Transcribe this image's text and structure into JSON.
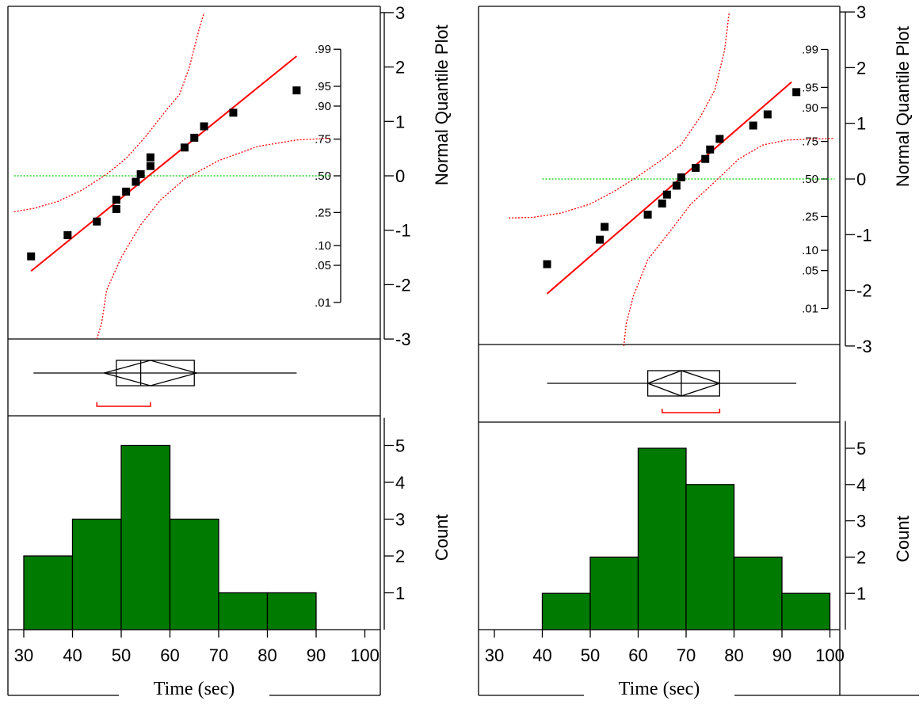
{
  "chart_data": [
    {
      "type": "scatter",
      "title": "",
      "xlabel": "Time (sec)",
      "x_ticks": [
        30,
        40,
        50,
        60,
        70,
        80,
        90,
        100
      ],
      "x_range": [
        28,
        103
      ],
      "quantile_plot": {
        "ylabel": "Normal Quantile Plot",
        "y_range": [
          -3,
          3
        ],
        "y_ticks": [
          -3,
          -2,
          -1,
          0,
          1,
          2,
          3
        ],
        "prob_ticks": [
          {
            "label": ".99",
            "q": 2.326
          },
          {
            "label": ".95",
            "q": 1.645
          },
          {
            "label": ".90",
            "q": 1.2816
          },
          {
            "label": ".75",
            "q": 0.6745
          },
          {
            "label": ".50",
            "q": 0
          },
          {
            "label": ".25",
            "q": -0.6745
          },
          {
            "label": ".10",
            "q": -1.2816
          },
          {
            "label": ".05",
            "q": -1.645
          },
          {
            "label": ".01",
            "q": -2.326
          }
        ],
        "points": [
          {
            "x": 31.5,
            "q": -1.48
          },
          {
            "x": 39,
            "q": -1.09
          },
          {
            "x": 45,
            "q": -0.84
          },
          {
            "x": 49,
            "q": -0.61
          },
          {
            "x": 49,
            "q": -0.44
          },
          {
            "x": 51,
            "q": -0.29
          },
          {
            "x": 53,
            "q": -0.11
          },
          {
            "x": 54,
            "q": 0.03
          },
          {
            "x": 56,
            "q": 0.18
          },
          {
            "x": 56,
            "q": 0.34
          },
          {
            "x": 63,
            "q": 0.52
          },
          {
            "x": 65,
            "q": 0.7
          },
          {
            "x": 67,
            "q": 0.91
          },
          {
            "x": 73,
            "q": 1.16
          },
          {
            "x": 86,
            "q": 1.57
          }
        ],
        "fit_line": [
          {
            "x": 31.5,
            "q": -1.75
          },
          {
            "x": 86,
            "q": 2.2
          }
        ],
        "confidence_upper": [
          {
            "x": 28,
            "q": -0.66
          },
          {
            "x": 32,
            "q": -0.6
          },
          {
            "x": 37,
            "q": -0.47
          },
          {
            "x": 42,
            "q": -0.26
          },
          {
            "x": 47,
            "q": 0.03
          },
          {
            "x": 51,
            "q": 0.32
          },
          {
            "x": 55,
            "q": 0.72
          },
          {
            "x": 59,
            "q": 1.18
          },
          {
            "x": 62,
            "q": 1.5
          },
          {
            "x": 64,
            "q": 2.0
          },
          {
            "x": 66,
            "q": 2.7
          },
          {
            "x": 67,
            "q": 3.0
          }
        ],
        "confidence_lower": [
          {
            "x": 45,
            "q": -3.0
          },
          {
            "x": 46,
            "q": -2.7
          },
          {
            "x": 47,
            "q": -2.1
          },
          {
            "x": 50,
            "q": -1.5
          },
          {
            "x": 54,
            "q": -0.9
          },
          {
            "x": 58,
            "q": -0.45
          },
          {
            "x": 63,
            "q": -0.06
          },
          {
            "x": 70,
            "q": 0.28
          },
          {
            "x": 78,
            "q": 0.54
          },
          {
            "x": 86,
            "q": 0.66
          },
          {
            "x": 93,
            "q": 0.69
          }
        ],
        "median_line": {
          "q": 0,
          "x_from": 28,
          "x_to": 93
        }
      },
      "box_plot": {
        "min": 32,
        "q1": 49,
        "median": 54,
        "q3": 65,
        "max": 86,
        "mean": 56,
        "mean_ci": [
          46.5,
          65.5
        ],
        "shortest_half": [
          45,
          56
        ]
      },
      "histogram": {
        "ylabel": "Count",
        "y_ticks": [
          1,
          2,
          3,
          4,
          5
        ],
        "y_max": 5.75,
        "bins": [
          {
            "from": 30,
            "to": 40,
            "count": 2
          },
          {
            "from": 40,
            "to": 50,
            "count": 3
          },
          {
            "from": 50,
            "to": 60,
            "count": 5
          },
          {
            "from": 60,
            "to": 70,
            "count": 3
          },
          {
            "from": 70,
            "to": 80,
            "count": 1
          },
          {
            "from": 80,
            "to": 90,
            "count": 1
          }
        ]
      }
    },
    {
      "type": "scatter",
      "title": "",
      "xlabel": "Time (sec)",
      "x_ticks": [
        30,
        40,
        50,
        60,
        70,
        80,
        90,
        100
      ],
      "x_range": [
        28,
        101
      ],
      "quantile_plot": {
        "ylabel": "Normal Quantile Plot",
        "y_range": [
          -3,
          3
        ],
        "y_ticks": [
          -3,
          -2,
          -1,
          0,
          1,
          2,
          3
        ],
        "prob_ticks": [
          {
            "label": ".99",
            "q": 2.326
          },
          {
            "label": ".95",
            "q": 1.645
          },
          {
            "label": ".90",
            "q": 1.2816
          },
          {
            "label": ".75",
            "q": 0.6745
          },
          {
            "label": ".50",
            "q": 0
          },
          {
            "label": ".25",
            "q": -0.6745
          },
          {
            "label": ".10",
            "q": -1.2816
          },
          {
            "label": ".05",
            "q": -1.645
          },
          {
            "label": ".01",
            "q": -2.326
          }
        ],
        "points": [
          {
            "x": 41,
            "q": -1.53
          },
          {
            "x": 52,
            "q": -1.09
          },
          {
            "x": 53,
            "q": -0.86
          },
          {
            "x": 62,
            "q": -0.64
          },
          {
            "x": 65,
            "q": -0.44
          },
          {
            "x": 66,
            "q": -0.28
          },
          {
            "x": 68,
            "q": -0.12
          },
          {
            "x": 69,
            "q": 0.03
          },
          {
            "x": 72,
            "q": 0.2
          },
          {
            "x": 74,
            "q": 0.36
          },
          {
            "x": 75,
            "q": 0.53
          },
          {
            "x": 77,
            "q": 0.72
          },
          {
            "x": 84,
            "q": 0.96
          },
          {
            "x": 87,
            "q": 1.16
          },
          {
            "x": 93,
            "q": 1.56
          }
        ],
        "fit_line": [
          {
            "x": 41,
            "q": -2.06
          },
          {
            "x": 92,
            "q": 1.74
          }
        ],
        "confidence_upper": [
          {
            "x": 33,
            "q": -0.7
          },
          {
            "x": 38,
            "q": -0.69
          },
          {
            "x": 44,
            "q": -0.61
          },
          {
            "x": 50,
            "q": -0.45
          },
          {
            "x": 55,
            "q": -0.22
          },
          {
            "x": 60,
            "q": 0.05
          },
          {
            "x": 65,
            "q": 0.35
          },
          {
            "x": 69,
            "q": 0.62
          },
          {
            "x": 73,
            "q": 1.12
          },
          {
            "x": 76,
            "q": 1.6
          },
          {
            "x": 78,
            "q": 2.3
          },
          {
            "x": 79,
            "q": 3.0
          }
        ],
        "confidence_lower": [
          {
            "x": 57,
            "q": -3.0
          },
          {
            "x": 57.5,
            "q": -2.6
          },
          {
            "x": 59,
            "q": -2.1
          },
          {
            "x": 62,
            "q": -1.45
          },
          {
            "x": 67,
            "q": -0.9
          },
          {
            "x": 71,
            "q": -0.45
          },
          {
            "x": 76,
            "q": -0.05
          },
          {
            "x": 81,
            "q": 0.36
          },
          {
            "x": 86,
            "q": 0.61
          },
          {
            "x": 91,
            "q": 0.7
          },
          {
            "x": 101,
            "q": 0.73
          }
        ],
        "median_line": {
          "q": 0,
          "x_from": 40,
          "x_to": 101
        }
      },
      "box_plot": {
        "min": 41,
        "q1": 62,
        "median": 69,
        "q3": 77,
        "max": 93,
        "mean": 69,
        "mean_ci": [
          62,
          77
        ],
        "shortest_half": [
          65,
          77
        ]
      },
      "histogram": {
        "ylabel": "Count",
        "y_ticks": [
          1,
          2,
          3,
          4,
          5
        ],
        "y_max": 5.75,
        "bins": [
          {
            "from": 40,
            "to": 50,
            "count": 1
          },
          {
            "from": 50,
            "to": 60,
            "count": 2
          },
          {
            "from": 60,
            "to": 70,
            "count": 5
          },
          {
            "from": 70,
            "to": 80,
            "count": 4
          },
          {
            "from": 80,
            "to": 90,
            "count": 2
          },
          {
            "from": 90,
            "to": 100,
            "count": 1
          }
        ]
      }
    }
  ],
  "colors": {
    "points": "#000000",
    "fit_line": "#ff0000",
    "confidence": "#ff0000",
    "median_line": "#00cc00",
    "bars": "#007a00",
    "bar_edge": "#000000",
    "box": "#000000",
    "shortest_half": "#ff0000"
  }
}
